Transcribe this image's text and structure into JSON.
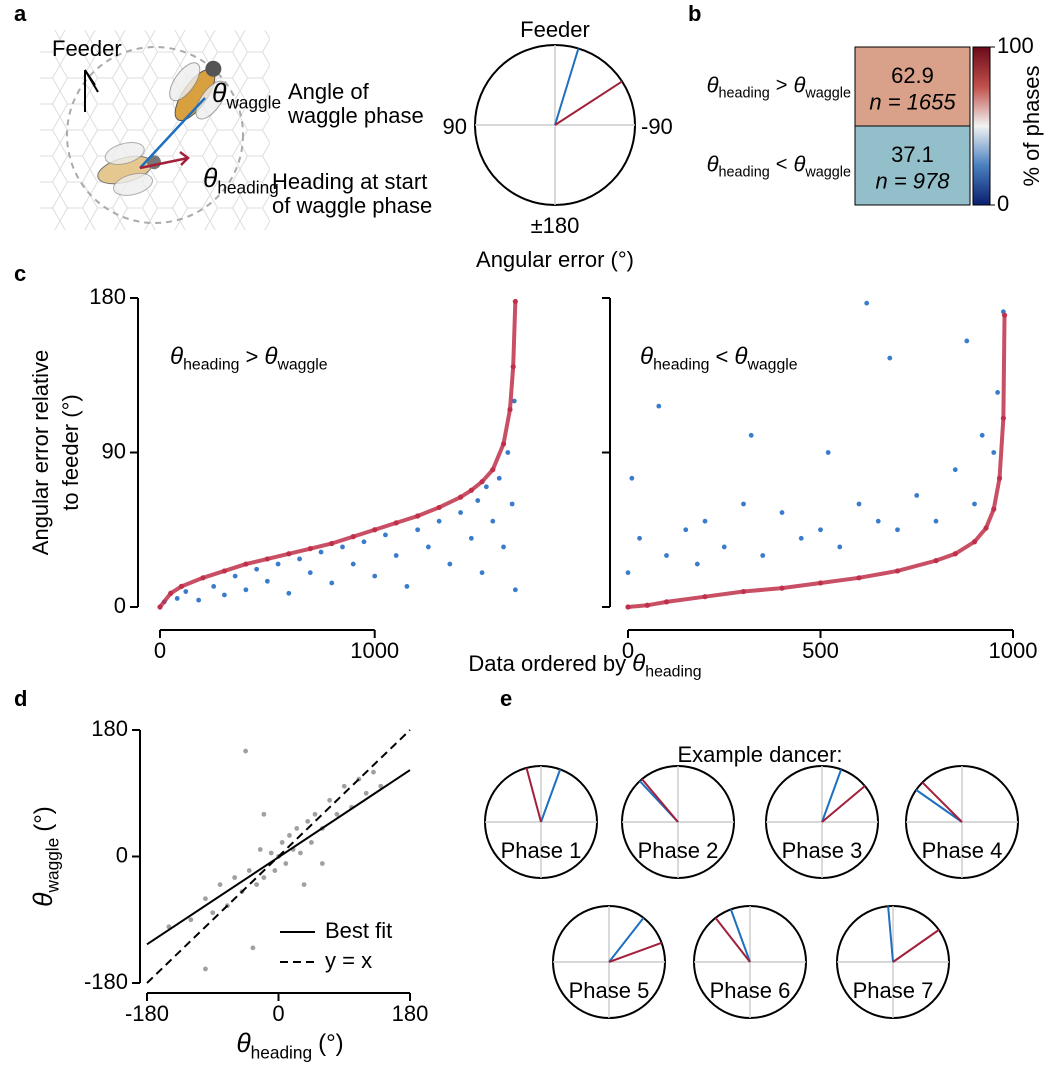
{
  "panel_labels": [
    "a",
    "b",
    "c",
    "d",
    "e"
  ],
  "illustration": {
    "feeder": "Feeder",
    "symbol": "θ",
    "waggle": "waggle",
    "waggle_desc": [
      "Angle of",
      "waggle phase"
    ],
    "heading": "heading",
    "heading_desc": [
      "Heading at start",
      "of waggle phase"
    ]
  },
  "panel_e_title": "Example dancer:",
  "chart_data": [
    {
      "type": "compass",
      "title": "Feeder",
      "labels": {
        "left": "90",
        "right": "-90",
        "bottom": "±180"
      },
      "xlabel": "Angular error (°)",
      "values": [
        -17,
        -57
      ],
      "colors": [
        "#1f6fbf",
        "#a3203a"
      ]
    },
    {
      "type": "heatmap",
      "rows": [
        {
          "symbol": "θ",
          "sub": "heading",
          "op": ">",
          "sub2": "waggle"
        },
        {
          "symbol": "θ",
          "sub": "heading",
          "op": "<",
          "sub2": "waggle"
        }
      ],
      "values": [
        62.9,
        37.1
      ],
      "n": [
        {
          "value": 1655,
          "label": "n = 1655"
        },
        {
          "value": 978,
          "label": "n = 978"
        }
      ],
      "colors": [
        "#d9a08a",
        "#93bfca"
      ],
      "colorbar": {
        "label": "% of phases",
        "lim": [
          0,
          100
        ],
        "ticks": [
          0,
          100
        ],
        "colors": [
          "#0a1f6e",
          "#4a80c0",
          "#f2f2f2",
          "#c0504a",
          "#6b0a1a"
        ]
      }
    },
    {
      "type": "scatter",
      "title": {
        "symbol": "θ",
        "sub": "heading",
        "op": ">",
        "sub2": "waggle"
      },
      "ylabel": [
        "Angular error relative",
        "to feeder (°)"
      ],
      "xlabel": {
        "text": "Data ordered by",
        "symbol": "θ",
        "sub": "heading"
      },
      "xlim": [
        0,
        1700
      ],
      "xticks": [
        0,
        1000
      ],
      "ylim": [
        0,
        180
      ],
      "yticks": [
        0,
        90,
        180
      ],
      "waggle": {
        "color": "#3a7ccc",
        "x": [
          20,
          80,
          120,
          180,
          250,
          300,
          350,
          400,
          450,
          500,
          550,
          600,
          650,
          700,
          750,
          800,
          850,
          900,
          950,
          1000,
          1050,
          1100,
          1150,
          1200,
          1250,
          1300,
          1350,
          1400,
          1450,
          1480,
          1500,
          1520,
          1550,
          1580,
          1600,
          1620,
          1640,
          1650,
          1655
        ],
        "values": [
          3,
          5,
          9,
          4,
          12,
          7,
          18,
          10,
          22,
          15,
          25,
          8,
          28,
          20,
          32,
          14,
          35,
          25,
          38,
          18,
          42,
          30,
          12,
          45,
          35,
          50,
          25,
          55,
          40,
          62,
          20,
          70,
          50,
          75,
          35,
          90,
          60,
          120,
          10
        ]
      },
      "heading": {
        "color": "#c0304a",
        "x": [
          0,
          50,
          100,
          200,
          300,
          400,
          500,
          600,
          700,
          800,
          900,
          1000,
          1100,
          1200,
          1300,
          1400,
          1450,
          1500,
          1550,
          1600,
          1630,
          1645,
          1655
        ],
        "values": [
          0,
          8,
          12,
          17,
          21,
          25,
          28,
          31,
          34,
          37,
          41,
          45,
          49,
          53,
          58,
          64,
          68,
          73,
          80,
          95,
          115,
          140,
          178
        ]
      }
    },
    {
      "type": "scatter",
      "title": {
        "symbol": "θ",
        "sub": "heading",
        "op": "<",
        "sub2": "waggle"
      },
      "xlim": [
        0,
        1000
      ],
      "xticks": [
        0,
        500,
        1000
      ],
      "ylim": [
        0,
        180
      ],
      "yticks": [
        0,
        90,
        180
      ],
      "waggle": {
        "color": "#3a7ccc",
        "x": [
          0,
          10,
          30,
          80,
          100,
          150,
          180,
          200,
          250,
          300,
          320,
          350,
          400,
          450,
          500,
          520,
          550,
          600,
          620,
          650,
          680,
          700,
          750,
          800,
          850,
          880,
          900,
          920,
          950,
          960,
          975
        ],
        "values": [
          20,
          75,
          40,
          117,
          30,
          45,
          25,
          50,
          35,
          60,
          100,
          30,
          55,
          40,
          45,
          90,
          35,
          60,
          177,
          50,
          145,
          45,
          65,
          50,
          80,
          155,
          60,
          100,
          90,
          125,
          172
        ]
      },
      "heading": {
        "color": "#c0304a",
        "x": [
          0,
          50,
          100,
          200,
          300,
          400,
          500,
          600,
          700,
          800,
          850,
          900,
          930,
          950,
          965,
          975,
          978
        ],
        "values": [
          0,
          1,
          3,
          6,
          9,
          11,
          14,
          17,
          21,
          27,
          31,
          38,
          46,
          57,
          75,
          110,
          170
        ]
      }
    },
    {
      "type": "fit",
      "xlabel": {
        "symbol": "θ",
        "sub": "heading",
        "unit": "(°)"
      },
      "ylabel": {
        "symbol": "θ",
        "sub": "waggle",
        "unit": "(°)"
      },
      "xlim": [
        -180,
        180
      ],
      "xticks": [
        -180,
        0,
        180
      ],
      "ylim": [
        -180,
        180
      ],
      "yticks": [
        -180,
        0,
        180
      ],
      "points": {
        "color": "#a0a0a0",
        "x": [
          -150,
          -120,
          -100,
          -90,
          -80,
          -70,
          -60,
          -50,
          -45,
          -40,
          -30,
          -25,
          -20,
          -10,
          -5,
          0,
          5,
          10,
          15,
          20,
          25,
          30,
          40,
          45,
          50,
          60,
          70,
          80,
          90,
          100,
          110,
          120,
          130,
          -35,
          60,
          -100,
          140,
          -20,
          35
        ],
        "values": [
          -100,
          -90,
          -60,
          -80,
          -40,
          -70,
          -30,
          -50,
          150,
          -20,
          -40,
          10,
          -30,
          5,
          -20,
          0,
          20,
          -10,
          30,
          10,
          40,
          5,
          50,
          20,
          60,
          40,
          80,
          60,
          100,
          70,
          110,
          90,
          120,
          -130,
          -10,
          -160,
          100,
          60,
          -40
        ]
      },
      "lines": [
        {
          "name": "Best fit",
          "x": [
            -180,
            180
          ],
          "values": [
            -125,
            123
          ],
          "dash": false
        },
        {
          "name": "y = x",
          "x": [
            -180,
            180
          ],
          "values": [
            -180,
            180
          ],
          "dash": true
        }
      ]
    },
    {
      "type": "compass",
      "label": "Phase 1",
      "values": [
        -20,
        15
      ],
      "colors": [
        "#1f6fbf",
        "#a3203a"
      ]
    },
    {
      "type": "compass",
      "label": "Phase 2",
      "values": [
        43,
        40
      ],
      "colors": [
        "#1f6fbf",
        "#a3203a"
      ]
    },
    {
      "type": "compass",
      "label": "Phase 3",
      "values": [
        -20,
        -50
      ],
      "colors": [
        "#1f6fbf",
        "#a3203a"
      ]
    },
    {
      "type": "compass",
      "label": "Phase 4",
      "values": [
        55,
        45
      ],
      "colors": [
        "#1f6fbf",
        "#a3203a"
      ]
    },
    {
      "type": "compass",
      "label": "Phase 5",
      "values": [
        -38,
        -70
      ],
      "colors": [
        "#1f6fbf",
        "#a3203a"
      ]
    },
    {
      "type": "compass",
      "label": "Phase 6",
      "values": [
        20,
        38
      ],
      "colors": [
        "#1f6fbf",
        "#a3203a"
      ]
    },
    {
      "type": "compass",
      "label": "Phase 7",
      "values": [
        5,
        -55
      ],
      "colors": [
        "#1f6fbf",
        "#a3203a"
      ]
    }
  ]
}
